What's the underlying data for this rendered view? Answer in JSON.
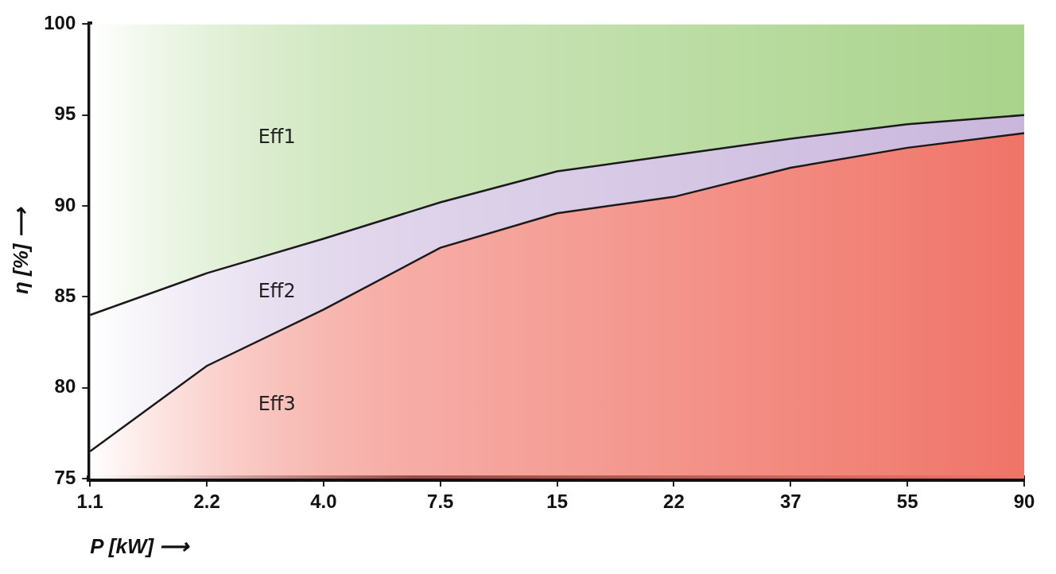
{
  "chart_data": {
    "type": "area",
    "xlabel": "P [kW] ⟶",
    "ylabel": "η [%] ⟶",
    "categories": [
      "1.1",
      "2.2",
      "4.0",
      "7.5",
      "15",
      "22",
      "37",
      "55",
      "90"
    ],
    "series": [
      {
        "name": "Eff3",
        "color": "#f07468",
        "values": [
          76.5,
          81.2,
          84.3,
          87.7,
          89.6,
          90.5,
          92.1,
          93.2,
          94.0
        ]
      },
      {
        "name": "Eff2",
        "color": "#c9b6dc",
        "values": [
          84.0,
          86.3,
          88.2,
          90.2,
          91.9,
          92.8,
          93.7,
          94.5,
          95.0
        ]
      },
      {
        "name": "Eff1",
        "color": "#a8d38a",
        "values": [
          100,
          100,
          100,
          100,
          100,
          100,
          100,
          100,
          100
        ]
      }
    ],
    "ylim": [
      75,
      100
    ],
    "yticks": [
      75,
      80,
      85,
      90,
      95,
      100
    ],
    "grid": false,
    "legend": false
  }
}
